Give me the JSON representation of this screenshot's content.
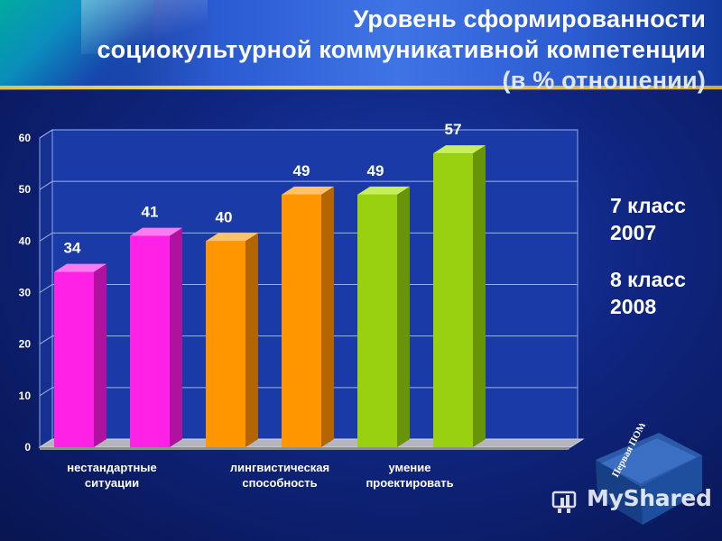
{
  "title": {
    "line1": "Уровень сформированности",
    "line2": "социокультурной коммуникативной компетенции",
    "line3": "(в % отношении)"
  },
  "legend": {
    "item1_line1": "7 класс",
    "item1_line2": "2007",
    "item2_line1": "8 класс",
    "item2_line2": "2008"
  },
  "watermark": "MyShared",
  "logo_text": "Первая ПОМОЩЬ 1.0",
  "colors": {
    "magenta": "#ff22e6",
    "orange": "#ff9900",
    "green": "#99d111"
  },
  "chart_data": {
    "type": "bar",
    "title": "Уровень сформированности социокультурной коммуникативной компетенции (в % отношении)",
    "ylim": [
      0,
      60
    ],
    "yticks": [
      0,
      10,
      20,
      30,
      40,
      50,
      60
    ],
    "grid": true,
    "groups": [
      {
        "label": [
          "нестандартные",
          "ситуации"
        ],
        "color": "magenta"
      },
      {
        "label": [
          "лингвистическая",
          "способность"
        ],
        "color": "orange"
      },
      {
        "label": [
          "умение",
          "проектировать"
        ],
        "color": "green"
      }
    ],
    "series": [
      {
        "name": "7 класс 2007",
        "values": [
          34,
          40,
          49
        ]
      },
      {
        "name": "8 класс 2008",
        "values": [
          41,
          49,
          57
        ]
      }
    ],
    "bars": [
      {
        "group": 0,
        "value": 34,
        "label": "34"
      },
      {
        "group": 0,
        "value": 41,
        "label": "41"
      },
      {
        "group": 1,
        "value": 40,
        "label": "40"
      },
      {
        "group": 1,
        "value": 49,
        "label": "49"
      },
      {
        "group": 2,
        "value": 49,
        "label": "49"
      },
      {
        "group": 2,
        "value": 57,
        "label": "57"
      }
    ]
  }
}
